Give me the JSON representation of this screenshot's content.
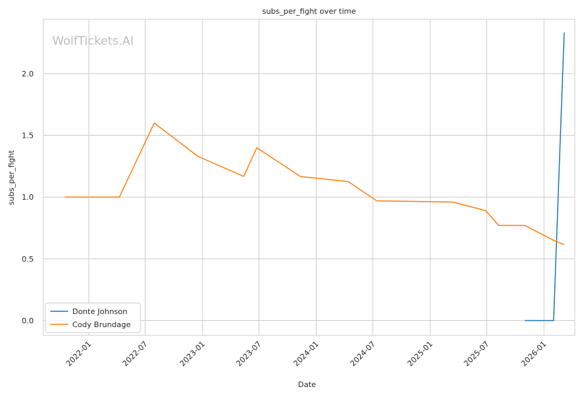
{
  "chart_data": {
    "type": "line",
    "title": "subs_per_fight over time",
    "xlabel": "Date",
    "ylabel": "subs_per_fight",
    "watermark": "WolfTickets.AI",
    "x_axis": "date",
    "xlim": [
      "2021-08-08",
      "2026-04-10"
    ],
    "ylim": [
      -0.12,
      2.44
    ],
    "xticks": [
      "2022-01",
      "2022-07",
      "2023-01",
      "2023-07",
      "2024-01",
      "2024-07",
      "2025-01",
      "2025-07",
      "2026-01"
    ],
    "yticks": [
      "0.0",
      "0.5",
      "1.0",
      "1.5",
      "2.0"
    ],
    "grid": true,
    "legend": "lower-left",
    "series": [
      {
        "name": "Donte Johnson",
        "color": "#1f77b4",
        "points": [
          {
            "x": "2025-11-01",
            "y": 0.0
          },
          {
            "x": "2026-02-01",
            "y": 0.0
          },
          {
            "x": "2026-03-07",
            "y": 2.333
          }
        ]
      },
      {
        "name": "Cody Brundage",
        "color": "#ff7f0e",
        "points": [
          {
            "x": "2021-10-16",
            "y": 1.0
          },
          {
            "x": "2022-04-09",
            "y": 1.0
          },
          {
            "x": "2022-07-30",
            "y": 1.6
          },
          {
            "x": "2022-12-17",
            "y": 1.33
          },
          {
            "x": "2023-05-13",
            "y": 1.167
          },
          {
            "x": "2023-06-24",
            "y": 1.4
          },
          {
            "x": "2023-11-11",
            "y": 1.167
          },
          {
            "x": "2024-04-13",
            "y": 1.125
          },
          {
            "x": "2024-07-13",
            "y": 0.97
          },
          {
            "x": "2025-03-15",
            "y": 0.96
          },
          {
            "x": "2025-06-28",
            "y": 0.89
          },
          {
            "x": "2025-08-09",
            "y": 0.77
          },
          {
            "x": "2025-11-01",
            "y": 0.77
          },
          {
            "x": "2026-02-01",
            "y": 0.65
          },
          {
            "x": "2026-03-07",
            "y": 0.615
          }
        ]
      }
    ]
  }
}
